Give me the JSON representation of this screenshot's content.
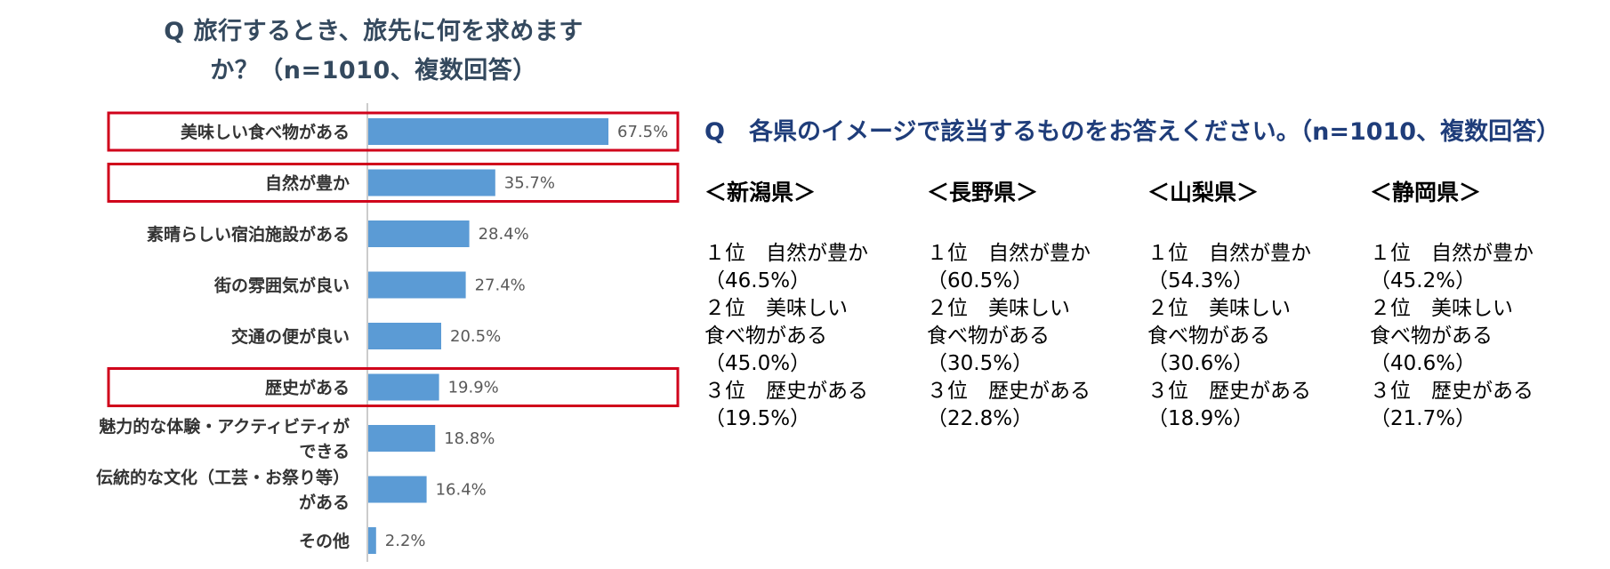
{
  "chart_data": {
    "type": "bar",
    "orientation": "horizontal",
    "title_lines": [
      "Q 旅行するとき、旅先に何を求めます",
      "か？（n=1010、複数回答）"
    ],
    "categories": [
      [
        "美味しい食べ物がある"
      ],
      [
        "自然が豊か"
      ],
      [
        "素晴らしい宿泊施設がある"
      ],
      [
        "街の雰囲気が良い"
      ],
      [
        "交通の便が良い"
      ],
      [
        "歴史がある"
      ],
      [
        "魅力的な体験・アクティビティが",
        "できる"
      ],
      [
        "伝統的な文化（工芸・お祭り等）",
        "がある"
      ],
      [
        "その他"
      ]
    ],
    "values": [
      67.5,
      35.7,
      28.4,
      27.4,
      20.5,
      19.9,
      18.8,
      16.4,
      2.2
    ],
    "value_labels": [
      "67.5%",
      "35.7%",
      "28.4%",
      "27.4%",
      "20.5%",
      "19.9%",
      "18.8%",
      "16.4%",
      "2.2%"
    ],
    "highlighted": [
      "美味しい食べ物がある",
      "自然が豊か",
      "歴史がある"
    ],
    "xlim": [
      0,
      100
    ],
    "colors": {
      "bar": "#5b9bd5",
      "highlight_box": "#d0021b",
      "axis": "#999999"
    }
  },
  "survey": {
    "title": "Q　各県のイメージで該当するものをお答えください。（n=1010、複数回答）",
    "prefectures": [
      {
        "name": "＜新潟県＞",
        "ranks": [
          {
            "head": "１位　自然が豊か",
            "lines": [],
            "pct": "（46.5%）"
          },
          {
            "head": "２位　美味しい",
            "lines": [
              "食べ物がある"
            ],
            "pct": "（45.0%）"
          },
          {
            "head": "３位　歴史がある",
            "lines": [],
            "pct": "（19.5%）"
          }
        ]
      },
      {
        "name": "＜長野県＞",
        "ranks": [
          {
            "head": "１位　自然が豊か",
            "lines": [],
            "pct": "（60.5%）"
          },
          {
            "head": "２位　美味しい",
            "lines": [
              "食べ物がある"
            ],
            "pct": "（30.5%）"
          },
          {
            "head": "３位　歴史がある",
            "lines": [],
            "pct": "（22.8%）"
          }
        ]
      },
      {
        "name": "＜山梨県＞",
        "ranks": [
          {
            "head": "１位　自然が豊か",
            "lines": [],
            "pct": "（54.3%）"
          },
          {
            "head": "２位　美味しい",
            "lines": [
              "食べ物がある"
            ],
            "pct": "（30.6%）"
          },
          {
            "head": "３位　歴史がある",
            "lines": [],
            "pct": "（18.9%）"
          }
        ]
      },
      {
        "name": "＜静岡県＞",
        "ranks": [
          {
            "head": "１位　自然が豊か",
            "lines": [],
            "pct": "（45.2%）"
          },
          {
            "head": "２位　美味しい",
            "lines": [
              "食べ物がある"
            ],
            "pct": "（40.6%）"
          },
          {
            "head": "３位　歴史がある",
            "lines": [],
            "pct": "（21.7%）"
          }
        ]
      }
    ]
  }
}
